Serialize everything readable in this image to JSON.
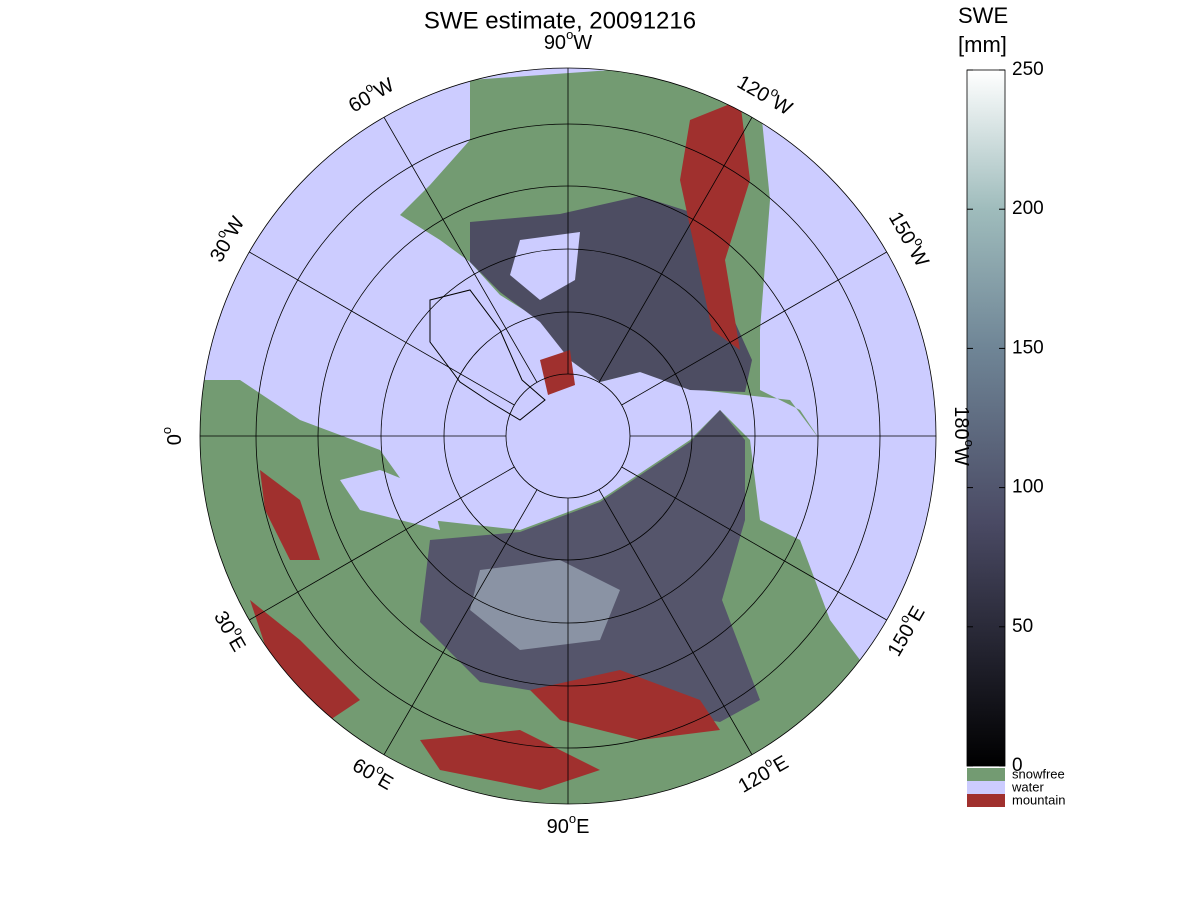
{
  "title": "SWE estimate, 20091216",
  "degree_symbol": "o",
  "lon_labels": [
    {
      "number": "90",
      "hemisphere": "W"
    },
    {
      "number": "120",
      "hemisphere": "W"
    },
    {
      "number": "150",
      "hemisphere": "W"
    },
    {
      "number": "180",
      "hemisphere": "W"
    },
    {
      "number": "150",
      "hemisphere": "E"
    },
    {
      "number": "120",
      "hemisphere": "E"
    },
    {
      "number": "90",
      "hemisphere": "E"
    },
    {
      "number": "60",
      "hemisphere": "E"
    },
    {
      "number": "30",
      "hemisphere": "E"
    },
    {
      "number": "0",
      "hemisphere": ""
    },
    {
      "number": "30",
      "hemisphere": "W"
    },
    {
      "number": "60",
      "hemisphere": "W"
    }
  ],
  "colorbar": {
    "label": [
      "SWE",
      "[mm]"
    ],
    "lim": [
      0,
      250
    ],
    "ticks": [
      0,
      50,
      100,
      150,
      200,
      250
    ]
  },
  "legend": [
    {
      "label": "snowfree",
      "color": "#739b72"
    },
    {
      "label": "water",
      "color": "#ccccff"
    },
    {
      "label": "mountain",
      "color": "#a0302e"
    }
  ]
}
